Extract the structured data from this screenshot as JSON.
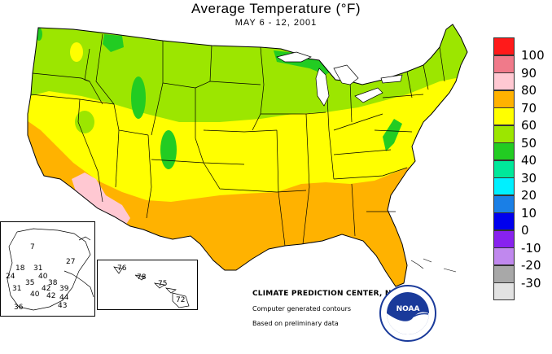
{
  "header": {
    "title": "Average Temperature (°F)",
    "subtitle": "MAY 6 - 12, 2001"
  },
  "legend": {
    "entries": [
      {
        "label": "100",
        "color": "#ff1a1a"
      },
      {
        "label": "90",
        "color": "#f07a8a"
      },
      {
        "label": "80",
        "color": "#ffc8d2"
      },
      {
        "label": "70",
        "color": "#ffb200"
      },
      {
        "label": "60",
        "color": "#ffff00"
      },
      {
        "label": "50",
        "color": "#9ce600"
      },
      {
        "label": "40",
        "color": "#22cc22"
      },
      {
        "label": "30",
        "color": "#00e89a"
      },
      {
        "label": "20",
        "color": "#00f0ff"
      },
      {
        "label": "10",
        "color": "#1a7fe6"
      },
      {
        "label": "0",
        "color": "#0000ee"
      },
      {
        "label": "-10",
        "color": "#8822ee"
      },
      {
        "label": "-20",
        "color": "#c088ee"
      },
      {
        "label": "-30",
        "color": "#a8a8a8"
      },
      {
        "label": "",
        "color": "#e2e2e2"
      }
    ]
  },
  "credits": {
    "main": "CLIMATE PREDICTION CENTER, NOAA",
    "line1": "Computer generated contours",
    "line2": "Based on preliminary data"
  },
  "logo": {
    "text": "NOAA"
  },
  "alaska": {
    "values": [
      "7",
      "27",
      "18",
      "31",
      "24",
      "40",
      "35",
      "38",
      "31",
      "42",
      "39",
      "40",
      "42",
      "44",
      "36",
      "43"
    ]
  },
  "hawaii": {
    "values": [
      "76",
      "78",
      "75",
      "72"
    ]
  },
  "colors": {
    "ocean": "#ffffff",
    "lake": "#ffffff",
    "border": "#000000"
  }
}
